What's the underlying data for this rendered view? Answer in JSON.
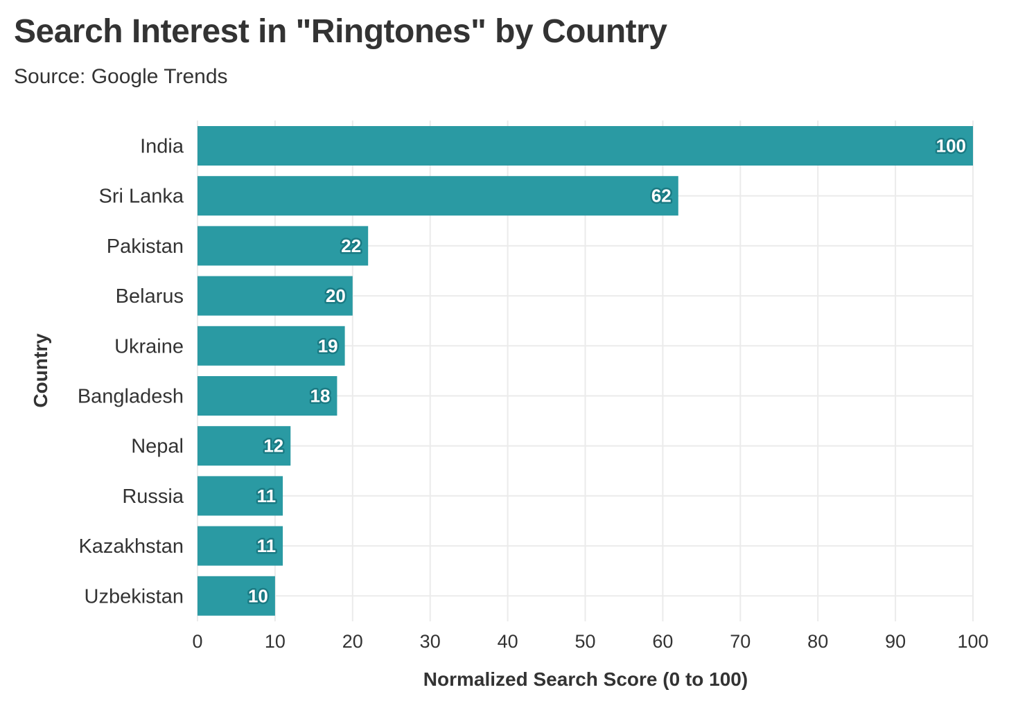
{
  "chart_data": {
    "type": "bar",
    "orientation": "horizontal",
    "title": "Search Interest in \"Ringtones\" by Country",
    "subtitle": "Source: Google Trends",
    "xlabel": "Normalized Search Score (0 to 100)",
    "ylabel": "Country",
    "categories": [
      "India",
      "Sri Lanka",
      "Pakistan",
      "Belarus",
      "Ukraine",
      "Bangladesh",
      "Nepal",
      "Russia",
      "Kazakhstan",
      "Uzbekistan"
    ],
    "values": [
      100,
      62,
      22,
      20,
      19,
      18,
      12,
      11,
      11,
      10
    ],
    "data_labels": [
      "100",
      "62",
      "22",
      "20",
      "19",
      "18",
      "12",
      "11",
      "11",
      "10"
    ],
    "xlim": [
      0,
      100
    ],
    "xticks": [
      0,
      10,
      20,
      30,
      40,
      50,
      60,
      70,
      80,
      90,
      100
    ],
    "grid": true,
    "bar_color": "#2a9aa3",
    "label_outline_color": "#1a7a83"
  }
}
